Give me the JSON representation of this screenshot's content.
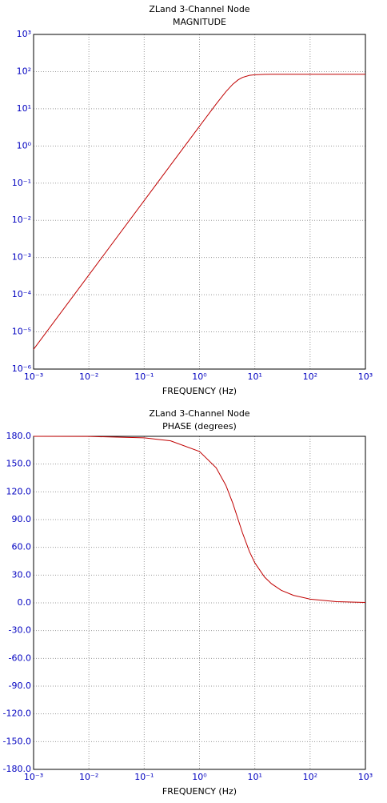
{
  "chart_data": [
    {
      "type": "line",
      "title": "ZLand 3-Channel Node",
      "subtitle": "MAGNITUDE",
      "x_label": "FREQUENCY (Hz)",
      "x": [
        0.001,
        0.01,
        0.1,
        0.3,
        1,
        2,
        3,
        4,
        5,
        6,
        8,
        10,
        15,
        20,
        30,
        50,
        100,
        300,
        1000
      ],
      "values": [
        3.4e-06,
        0.00034,
        0.034,
        0.306,
        3.4,
        13.43,
        28.79,
        45.8,
        60.1,
        69.8,
        79.2,
        82.5,
        84.5,
        84.8,
        85,
        85,
        85,
        85,
        85
      ],
      "color": "#c00000",
      "xlog": true,
      "ylog": true,
      "grid": true,
      "xlim": [
        0.001,
        1000
      ],
      "xticks": [
        {
          "value": 0.001,
          "label": "10⁻³"
        },
        {
          "value": 0.01,
          "label": "10⁻²"
        },
        {
          "value": 0.1,
          "label": "10⁻¹"
        },
        {
          "value": 1,
          "label": "10⁰"
        },
        {
          "value": 10,
          "label": "10¹"
        },
        {
          "value": 100,
          "label": "10²"
        },
        {
          "value": 1000,
          "label": "10³"
        }
      ],
      "ylim": [
        1e-06,
        1000
      ],
      "yticks": [
        {
          "value": 1e-06,
          "label": "10⁻⁶"
        },
        {
          "value": 1e-05,
          "label": "10⁻⁵"
        },
        {
          "value": 0.0001,
          "label": "10⁻⁴"
        },
        {
          "value": 0.001,
          "label": "10⁻³"
        },
        {
          "value": 0.01,
          "label": "10⁻²"
        },
        {
          "value": 0.1,
          "label": "10⁻¹"
        },
        {
          "value": 1,
          "label": "10⁰"
        },
        {
          "value": 10,
          "label": "10¹"
        },
        {
          "value": 100,
          "label": "10²"
        },
        {
          "value": 1000,
          "label": "10³"
        }
      ]
    },
    {
      "type": "line",
      "title": "ZLand 3-Channel Node",
      "subtitle": "PHASE (degrees)",
      "x_label": "FREQUENCY (Hz)",
      "x": [
        0.001,
        0.01,
        0.1,
        0.3,
        1,
        2,
        3,
        4,
        5,
        6,
        8,
        10,
        15,
        20,
        30,
        50,
        100,
        300,
        1000
      ],
      "values": [
        179.98,
        179.84,
        178.4,
        175.1,
        163.6,
        146.0,
        127.0,
        107.7,
        90,
        75.5,
        55.4,
        43.3,
        27.9,
        20.7,
        13.6,
        8.1,
        4.05,
        1.35,
        0.41
      ],
      "color": "#c00000",
      "xlog": true,
      "ylog": false,
      "grid": true,
      "xlim": [
        0.001,
        1000
      ],
      "xticks": [
        {
          "value": 0.001,
          "label": "10⁻³"
        },
        {
          "value": 0.01,
          "label": "10⁻²"
        },
        {
          "value": 0.1,
          "label": "10⁻¹"
        },
        {
          "value": 1,
          "label": "10⁰"
        },
        {
          "value": 10,
          "label": "10¹"
        },
        {
          "value": 100,
          "label": "10²"
        },
        {
          "value": 1000,
          "label": "10³"
        }
      ],
      "ylim": [
        -180,
        180
      ],
      "yticks": [
        {
          "value": -180,
          "label": "-180.0"
        },
        {
          "value": -150,
          "label": "-150.0"
        },
        {
          "value": -120,
          "label": "-120.0"
        },
        {
          "value": -90,
          "label": "-90.0"
        },
        {
          "value": -60,
          "label": "-60.0"
        },
        {
          "value": -30,
          "label": "-30.0"
        },
        {
          "value": 0,
          "label": "0.0"
        },
        {
          "value": 30,
          "label": "30.0"
        },
        {
          "value": 60,
          "label": "60.0"
        },
        {
          "value": 90,
          "label": "90.0"
        },
        {
          "value": 120,
          "label": "120.0"
        },
        {
          "value": 150,
          "label": "150.0"
        },
        {
          "value": 180,
          "label": "180.0"
        }
      ]
    }
  ]
}
